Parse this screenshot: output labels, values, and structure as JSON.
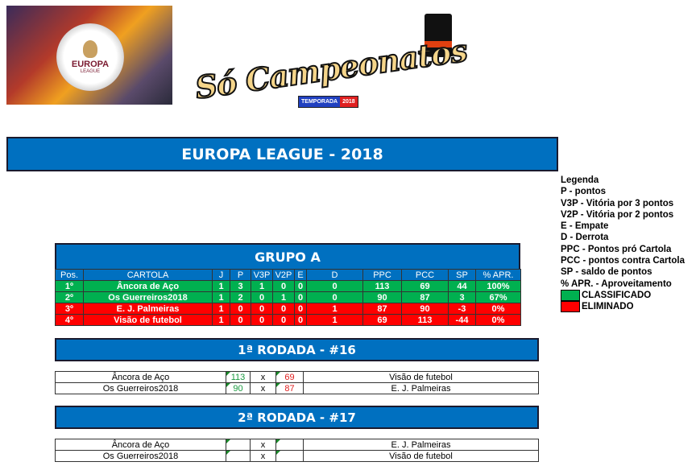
{
  "logos": {
    "europa_league": "UEFA EUROPA LEAGUE",
    "so_campeonatos": "Só Campeonatos",
    "temporada": "TEMPORADA",
    "temporada_year": "2018"
  },
  "title": "EUROPA LEAGUE - 2018",
  "group": {
    "title": "GRUPO A",
    "columns": [
      "Pos.",
      "CARTOLA",
      "J",
      "P",
      "V3P",
      "V2P",
      "E",
      "D",
      "PPC",
      "PCC",
      "SP",
      "% APR."
    ],
    "rows": [
      {
        "status": "classificado",
        "cells": [
          "1º",
          "Âncora de Aço",
          "1",
          "3",
          "1",
          "0",
          "0",
          "0",
          "113",
          "69",
          "44",
          "100%"
        ]
      },
      {
        "status": "classificado",
        "cells": [
          "2º",
          "Os Guerreiros2018",
          "1",
          "2",
          "0",
          "1",
          "0",
          "0",
          "90",
          "87",
          "3",
          "67%"
        ]
      },
      {
        "status": "eliminado",
        "cells": [
          "3º",
          "E. J. Palmeiras",
          "1",
          "0",
          "0",
          "0",
          "0",
          "1",
          "87",
          "90",
          "-3",
          "0%"
        ]
      },
      {
        "status": "eliminado",
        "cells": [
          "4º",
          "Visão de futebol",
          "1",
          "0",
          "0",
          "0",
          "0",
          "1",
          "69",
          "113",
          "-44",
          "0%"
        ]
      }
    ]
  },
  "rounds": [
    {
      "title": "1ª RODADA - #16",
      "matches": [
        {
          "home": "Âncora de Aço",
          "home_score": "113",
          "vs": "x",
          "away_score": "69",
          "away": "Visão de futebol"
        },
        {
          "home": "Os Guerreiros2018",
          "home_score": "90",
          "vs": "x",
          "away_score": "87",
          "away": "E. J. Palmeiras"
        }
      ]
    },
    {
      "title": "2ª RODADA - #17",
      "matches": [
        {
          "home": "Âncora de Aço",
          "home_score": "",
          "vs": "x",
          "away_score": "",
          "away": "E. J. Palmeiras"
        },
        {
          "home": "Os Guerreiros2018",
          "home_score": "",
          "vs": "x",
          "away_score": "",
          "away": "Visão de futebol"
        }
      ]
    }
  ],
  "legend": {
    "title": "Legenda",
    "items": [
      "P - pontos",
      "V3P - Vitória por 3 pontos",
      "V2P - Vitória por 2 pontos",
      "E - Empate",
      "D - Derrota",
      "PPC - Pontos pró Cartola",
      "PCC - pontos contra Cartola",
      "SP - saldo de pontos",
      "% APR. - Aproveitamento"
    ],
    "classificado": "CLASSIFICADO",
    "eliminado": "ELIMINADO"
  },
  "colors": {
    "header_blue": "#0070c0",
    "classificado": "#00b050",
    "eliminado": "#ff0000"
  }
}
